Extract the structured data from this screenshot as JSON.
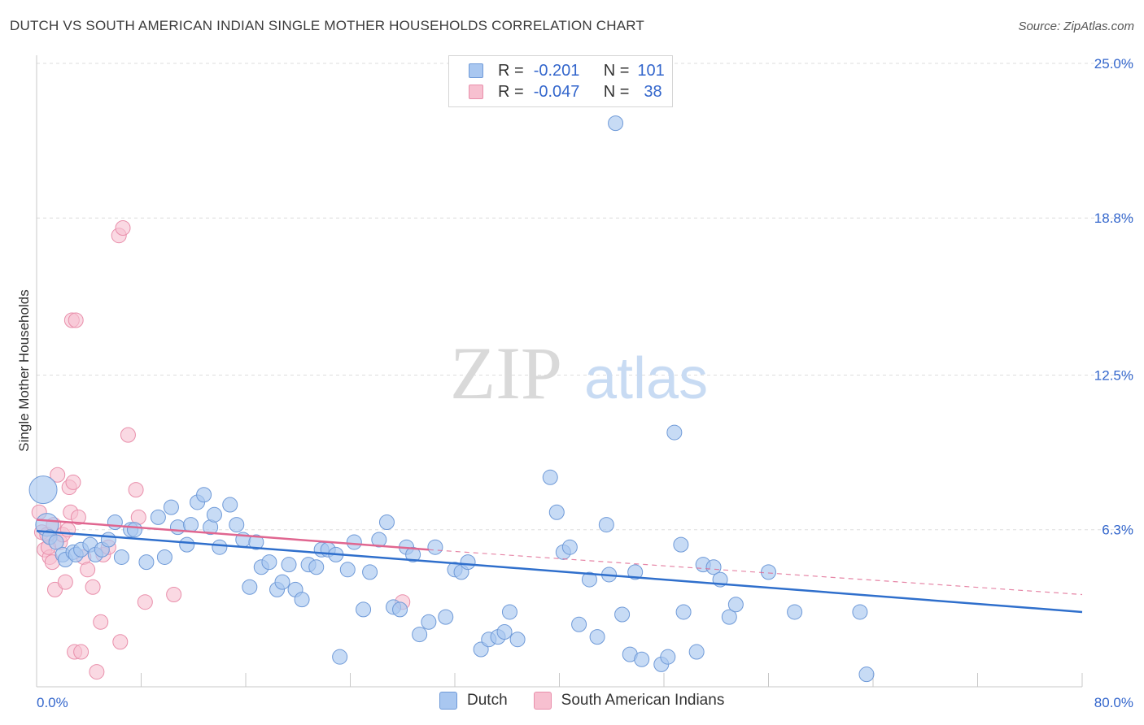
{
  "header": {
    "title": "DUTCH VS SOUTH AMERICAN INDIAN SINGLE MOTHER HOUSEHOLDS CORRELATION CHART",
    "source": "Source: ZipAtlas.com"
  },
  "watermark": {
    "zip": "ZIP",
    "atlas": "atlas"
  },
  "legend": {
    "rows": [
      {
        "r_label": "R =",
        "r_value": "-0.201",
        "n_label": "N =",
        "n_value": "101"
      },
      {
        "r_label": "R =",
        "r_value": "-0.047",
        "n_label": "N =",
        "n_value": "38"
      }
    ]
  },
  "bottom_legend": {
    "dutch": "Dutch",
    "sai": "South American Indians"
  },
  "colors": {
    "dutch_fill": "#a9c7f0",
    "dutch_stroke": "#6f9ad8",
    "dutch_line": "#2f6fcc",
    "sai_fill": "#f7c0d0",
    "sai_stroke": "#e98fab",
    "sai_line": "#e06690",
    "accent_text": "#3366cc",
    "grid": "#dddddd"
  },
  "chart_data": {
    "type": "scatter",
    "title": "DUTCH VS SOUTH AMERICAN INDIAN SINGLE MOTHER HOUSEHOLDS CORRELATION CHART",
    "ylabel": "Single Mother Households",
    "xlim": [
      0,
      80
    ],
    "ylim": [
      0,
      25
    ],
    "x_tick_labels": [
      "0.0%",
      "80.0%"
    ],
    "y_ticks": [
      6.3,
      12.5,
      18.8,
      25.0
    ],
    "y_tick_labels": [
      "6.3%",
      "12.5%",
      "18.8%",
      "25.0%"
    ],
    "grid": true,
    "legend_position": "top-center",
    "series": [
      {
        "name": "Dutch",
        "r": -0.201,
        "n": 101,
        "trend": {
          "x": [
            0,
            80
          ],
          "y": [
            6.25,
            3.0
          ]
        },
        "points": [
          [
            0.5,
            7.9
          ],
          [
            0.8,
            6.5
          ],
          [
            1,
            6.0
          ],
          [
            1.5,
            5.8
          ],
          [
            2,
            5.3
          ],
          [
            2.2,
            5.1
          ],
          [
            2.8,
            5.4
          ],
          [
            3,
            5.3
          ],
          [
            3.4,
            5.5
          ],
          [
            4.1,
            5.7
          ],
          [
            4.5,
            5.3
          ],
          [
            5,
            5.5
          ],
          [
            5.5,
            5.9
          ],
          [
            6,
            6.6
          ],
          [
            6.5,
            5.2
          ],
          [
            7.2,
            6.3
          ],
          [
            7.5,
            6.3
          ],
          [
            8.4,
            5.0
          ],
          [
            9.3,
            6.8
          ],
          [
            9.8,
            5.2
          ],
          [
            10.3,
            7.2
          ],
          [
            10.8,
            6.4
          ],
          [
            11.5,
            5.7
          ],
          [
            11.8,
            6.5
          ],
          [
            12.3,
            7.4
          ],
          [
            12.8,
            7.7
          ],
          [
            13.3,
            6.4
          ],
          [
            13.6,
            6.9
          ],
          [
            14,
            5.6
          ],
          [
            14.8,
            7.3
          ],
          [
            15.3,
            6.5
          ],
          [
            15.8,
            5.9
          ],
          [
            16.3,
            4.0
          ],
          [
            16.8,
            5.8
          ],
          [
            17.2,
            4.8
          ],
          [
            17.8,
            5.0
          ],
          [
            18.4,
            3.9
          ],
          [
            18.8,
            4.2
          ],
          [
            19.3,
            4.9
          ],
          [
            19.8,
            3.9
          ],
          [
            20.3,
            3.5
          ],
          [
            20.8,
            4.9
          ],
          [
            21.4,
            4.8
          ],
          [
            21.8,
            5.5
          ],
          [
            22.3,
            5.5
          ],
          [
            22.9,
            5.3
          ],
          [
            23.2,
            1.2
          ],
          [
            23.8,
            4.7
          ],
          [
            24.3,
            5.8
          ],
          [
            25,
            3.1
          ],
          [
            25.5,
            4.6
          ],
          [
            26.2,
            5.9
          ],
          [
            26.8,
            6.6
          ],
          [
            27.3,
            3.2
          ],
          [
            27.8,
            3.1
          ],
          [
            28.3,
            5.6
          ],
          [
            28.8,
            5.3
          ],
          [
            29.3,
            2.1
          ],
          [
            30,
            2.6
          ],
          [
            30.5,
            5.6
          ],
          [
            31.3,
            2.8
          ],
          [
            32,
            4.7
          ],
          [
            32.5,
            4.6
          ],
          [
            33,
            5.0
          ],
          [
            34,
            1.5
          ],
          [
            34.6,
            1.9
          ],
          [
            35.3,
            2.0
          ],
          [
            35.8,
            2.2
          ],
          [
            36.2,
            3.0
          ],
          [
            36.8,
            1.9
          ],
          [
            37.3,
            23.6
          ],
          [
            39.3,
            8.4
          ],
          [
            39.8,
            7.0
          ],
          [
            40.3,
            5.4
          ],
          [
            40.8,
            5.6
          ],
          [
            41.5,
            2.5
          ],
          [
            42.3,
            4.3
          ],
          [
            42.9,
            2.0
          ],
          [
            43.6,
            6.5
          ],
          [
            43.8,
            4.5
          ],
          [
            44.3,
            22.6
          ],
          [
            44.8,
            2.9
          ],
          [
            45.4,
            1.3
          ],
          [
            45.8,
            4.6
          ],
          [
            46.3,
            1.1
          ],
          [
            47.8,
            0.9
          ],
          [
            48.3,
            1.2
          ],
          [
            48.8,
            10.2
          ],
          [
            49.3,
            5.7
          ],
          [
            49.5,
            3.0
          ],
          [
            50.5,
            1.4
          ],
          [
            51,
            4.9
          ],
          [
            51.8,
            4.8
          ],
          [
            52.3,
            4.3
          ],
          [
            53,
            2.8
          ],
          [
            53.5,
            3.3
          ],
          [
            56,
            4.6
          ],
          [
            58,
            3.0
          ],
          [
            63,
            3.0
          ],
          [
            63.5,
            0.5
          ]
        ]
      },
      {
        "name": "South American Indians",
        "r": -0.047,
        "n": 38,
        "trend": {
          "x": [
            0,
            30
          ],
          "y": [
            6.7,
            5.5
          ],
          "dashed_to": [
            80,
            3.7
          ]
        },
        "points": [
          [
            0.2,
            7.0
          ],
          [
            0.4,
            6.2
          ],
          [
            0.6,
            5.5
          ],
          [
            0.8,
            6.1
          ],
          [
            1,
            5.2
          ],
          [
            1.2,
            5.0
          ],
          [
            1.3,
            6.5
          ],
          [
            1.4,
            3.9
          ],
          [
            1.6,
            8.5
          ],
          [
            1.8,
            5.8
          ],
          [
            2,
            6.1
          ],
          [
            2.2,
            4.2
          ],
          [
            2.4,
            6.3
          ],
          [
            2.5,
            8.0
          ],
          [
            2.6,
            7.0
          ],
          [
            2.7,
            14.7
          ],
          [
            2.8,
            8.2
          ],
          [
            2.9,
            1.4
          ],
          [
            3,
            14.7
          ],
          [
            3.2,
            6.8
          ],
          [
            3.4,
            1.4
          ],
          [
            3.6,
            5.2
          ],
          [
            3.9,
            4.7
          ],
          [
            4.3,
            4.0
          ],
          [
            4.6,
            0.6
          ],
          [
            4.9,
            2.6
          ],
          [
            5.1,
            5.3
          ],
          [
            5.5,
            5.6
          ],
          [
            6.3,
            18.1
          ],
          [
            6.4,
            1.8
          ],
          [
            6.6,
            18.4
          ],
          [
            7,
            10.1
          ],
          [
            7.6,
            7.9
          ],
          [
            7.8,
            6.8
          ],
          [
            8.3,
            3.4
          ],
          [
            10.5,
            3.7
          ],
          [
            28,
            3.4
          ],
          [
            0.9,
            5.6
          ]
        ]
      }
    ]
  }
}
